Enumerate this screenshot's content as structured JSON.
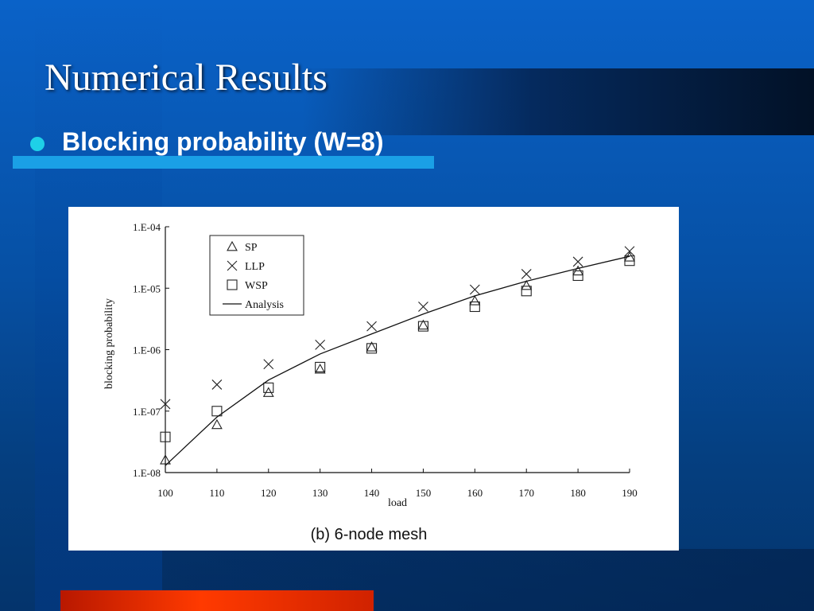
{
  "slide": {
    "title": "Numerical Results",
    "bullet": "Blocking probability (W=8)"
  },
  "colors": {
    "bullet_dot": "#1ed0e8",
    "accent_bar": "#1aa0e6",
    "bottom_bar": "#ff3a00"
  },
  "chart_data": {
    "type": "scatter",
    "caption": "(b) 6-node mesh",
    "xlabel": "load",
    "ylabel": "blocking probability",
    "x_scale": "linear",
    "y_scale": "log",
    "xlim": [
      100,
      190
    ],
    "ylim": [
      1e-08,
      0.0001
    ],
    "x_ticks": [
      100,
      110,
      120,
      130,
      140,
      150,
      160,
      170,
      180,
      190
    ],
    "x_tick_labels": [
      "100",
      "110",
      "120",
      "130",
      "140",
      "150",
      "160",
      "170",
      "180",
      "190"
    ],
    "y_ticks": [
      1e-08,
      1e-07,
      1e-06,
      1e-05,
      0.0001
    ],
    "y_tick_labels": [
      "1.E-08",
      "1.E-07",
      "1.E-06",
      "1.E-05",
      "1.E-04"
    ],
    "grid": false,
    "legend_position": "top-left",
    "x": [
      100,
      110,
      120,
      130,
      140,
      150,
      160,
      170,
      180,
      190
    ],
    "series": [
      {
        "name": "SP",
        "marker": "triangle",
        "values": [
          1.6e-08,
          6e-08,
          2e-07,
          4.8e-07,
          1.1e-06,
          2.5e-06,
          6.2e-06,
          1.1e-05,
          1.9e-05,
          3.2e-05
        ]
      },
      {
        "name": "LLP",
        "marker": "x",
        "values": [
          1.3e-07,
          2.7e-07,
          5.8e-07,
          1.2e-06,
          2.4e-06,
          5e-06,
          9.5e-06,
          1.7e-05,
          2.7e-05,
          4e-05
        ]
      },
      {
        "name": "WSP",
        "marker": "square",
        "values": [
          3.8e-08,
          1e-07,
          2.4e-07,
          5.2e-07,
          1.05e-06,
          2.4e-06,
          5e-06,
          9e-06,
          1.6e-05,
          2.8e-05
        ]
      },
      {
        "name": "Analysis",
        "marker": "line",
        "values": [
          1.3e-08,
          8e-08,
          3.2e-07,
          8.5e-07,
          1.8e-06,
          3.8e-06,
          7.5e-06,
          1.3e-05,
          2.1e-05,
          3.3e-05
        ]
      }
    ]
  }
}
